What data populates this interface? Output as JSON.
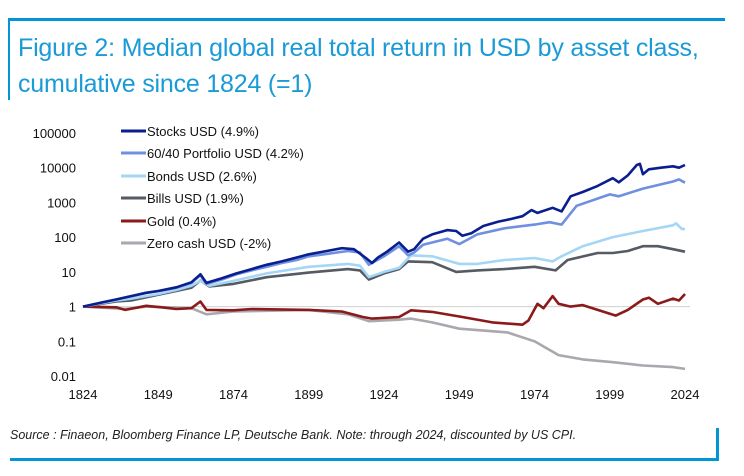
{
  "title": "Figure 2: Median global real total return in USD by asset class, cumulative since 1824 (=1)",
  "source": "Source : Finaeon, Bloomberg Finance LP, Deutsche Bank. Note: through 2024, discounted by US CPI.",
  "colors": {
    "frame": "#0096d6",
    "title": "#1a9ad6"
  },
  "chart_data": {
    "type": "line",
    "title": "Figure 2: Median global real total return in USD by asset class, cumulative since 1824 (=1)",
    "xlabel": "",
    "ylabel": "",
    "y_scale": "log",
    "xlim": [
      1824,
      2024
    ],
    "ylim": [
      0.01,
      100000
    ],
    "x_ticks": [
      "1824",
      "1849",
      "1874",
      "1899",
      "1924",
      "1949",
      "1974",
      "1999",
      "2024"
    ],
    "y_ticks": [
      "100000",
      "10000",
      "1000",
      "100",
      "10",
      "1",
      "0.1",
      "0.01"
    ],
    "grid": "horizontal line at 1 only",
    "legend": "top-left",
    "series": [
      {
        "name": "Stocks USD (4.9%)",
        "color": "#0a1f8f",
        "x": [
          1824,
          1830,
          1835,
          1840,
          1845,
          1849,
          1855,
          1860,
          1863,
          1865,
          1870,
          1875,
          1880,
          1885,
          1890,
          1895,
          1899,
          1905,
          1910,
          1914,
          1918,
          1920,
          1922,
          1925,
          1929,
          1932,
          1934,
          1937,
          1940,
          1945,
          1948,
          1950,
          1953,
          1957,
          1962,
          1966,
          1970,
          1973,
          1975,
          1980,
          1983,
          1986,
          1990,
          1995,
          2000,
          2002,
          2005,
          2008,
          2009,
          2010,
          2012,
          2016,
          2020,
          2022,
          2024
        ],
        "y": [
          1,
          1.3,
          1.6,
          2.0,
          2.5,
          2.8,
          3.6,
          5,
          8.5,
          4.8,
          6.5,
          9,
          12,
          16,
          20,
          26,
          32,
          40,
          48,
          45,
          25,
          18,
          26,
          38,
          70,
          38,
          45,
          90,
          120,
          160,
          150,
          110,
          130,
          210,
          280,
          330,
          400,
          600,
          500,
          700,
          550,
          1500,
          2000,
          3000,
          5000,
          3800,
          6000,
          12000,
          13000,
          6500,
          9000,
          10000,
          11000,
          10000,
          12000
        ]
      },
      {
        "name": "60/40 Portfolio USD (4.2%)",
        "color": "#6f8fe0",
        "x": [
          1824,
          1830,
          1835,
          1840,
          1845,
          1849,
          1855,
          1860,
          1863,
          1865,
          1870,
          1875,
          1880,
          1885,
          1890,
          1895,
          1899,
          1905,
          1912,
          1916,
          1919,
          1924,
          1929,
          1932,
          1934,
          1937,
          1945,
          1949,
          1955,
          1964,
          1974,
          1979,
          1983,
          1988,
          1999,
          2002,
          2010,
          2020,
          2022,
          2024
        ],
        "y": [
          1,
          1.3,
          1.6,
          2.0,
          2.5,
          2.8,
          3.5,
          4.8,
          8,
          4.5,
          6,
          8.5,
          11,
          14,
          18,
          22,
          28,
          33,
          40,
          36,
          16,
          28,
          55,
          30,
          36,
          60,
          90,
          63,
          120,
          180,
          230,
          270,
          230,
          800,
          1700,
          1500,
          2500,
          4000,
          4600,
          3700
        ]
      },
      {
        "name": "Bonds USD (2.6%)",
        "color": "#a5d6f5",
        "x": [
          1824,
          1835,
          1840,
          1849,
          1855,
          1860,
          1863,
          1866,
          1874,
          1885,
          1899,
          1912,
          1916,
          1919,
          1924,
          1929,
          1933,
          1940,
          1949,
          1955,
          1964,
          1974,
          1980,
          1983,
          1990,
          2000,
          2010,
          2020,
          2021,
          2023,
          2024
        ],
        "y": [
          1,
          1.5,
          1.7,
          2.3,
          3,
          4,
          5.5,
          4,
          5.5,
          9,
          14,
          17,
          15,
          7,
          10,
          13,
          30,
          28,
          17,
          17,
          22,
          25,
          20,
          28,
          55,
          100,
          150,
          220,
          250,
          170,
          170
        ]
      },
      {
        "name": "Bills USD (1.9%)",
        "color": "#555a63",
        "x": [
          1824,
          1835,
          1840,
          1849,
          1855,
          1860,
          1863,
          1866,
          1874,
          1885,
          1899,
          1912,
          1916,
          1919,
          1924,
          1929,
          1932,
          1940,
          1948,
          1955,
          1964,
          1974,
          1981,
          1985,
          1995,
          2000,
          2005,
          2010,
          2015,
          2020,
          2024
        ],
        "y": [
          1,
          1.4,
          1.5,
          2.2,
          2.8,
          3.5,
          5.6,
          3.8,
          4.5,
          7,
          9.5,
          12,
          11,
          6,
          9,
          12,
          20,
          19,
          10,
          11,
          12,
          14,
          11,
          22,
          35,
          35,
          40,
          55,
          55,
          45,
          38
        ]
      },
      {
        "name": "Gold (0.4%)",
        "color": "#8b1a1a",
        "x": [
          1824,
          1835,
          1838,
          1845,
          1850,
          1855,
          1860,
          1863,
          1865,
          1874,
          1880,
          1899,
          1910,
          1917,
          1920,
          1929,
          1933,
          1940,
          1950,
          1960,
          1970,
          1972,
          1975,
          1977,
          1980,
          1982,
          1986,
          1990,
          1995,
          2001,
          2005,
          2010,
          2012,
          2015,
          2020,
          2022,
          2024
        ],
        "y": [
          1,
          0.95,
          0.8,
          1.05,
          0.95,
          0.85,
          0.9,
          1.4,
          0.8,
          0.78,
          0.85,
          0.8,
          0.72,
          0.5,
          0.45,
          0.5,
          0.78,
          0.7,
          0.5,
          0.35,
          0.3,
          0.4,
          1.2,
          0.9,
          2.0,
          1.2,
          1.0,
          1.1,
          0.8,
          0.55,
          0.8,
          1.6,
          1.8,
          1.2,
          1.7,
          1.5,
          2.3
        ]
      },
      {
        "name": "Zero cash USD (-2%)",
        "color": "#a8a8ae",
        "x": [
          1824,
          1838,
          1845,
          1860,
          1865,
          1874,
          1899,
          1912,
          1919,
          1929,
          1933,
          1940,
          1949,
          1955,
          1965,
          1974,
          1982,
          1990,
          2000,
          2010,
          2020,
          2024
        ],
        "y": [
          1,
          0.85,
          1,
          0.9,
          0.6,
          0.72,
          0.8,
          0.6,
          0.38,
          0.42,
          0.45,
          0.35,
          0.23,
          0.21,
          0.18,
          0.1,
          0.04,
          0.03,
          0.025,
          0.02,
          0.018,
          0.016
        ]
      }
    ]
  }
}
